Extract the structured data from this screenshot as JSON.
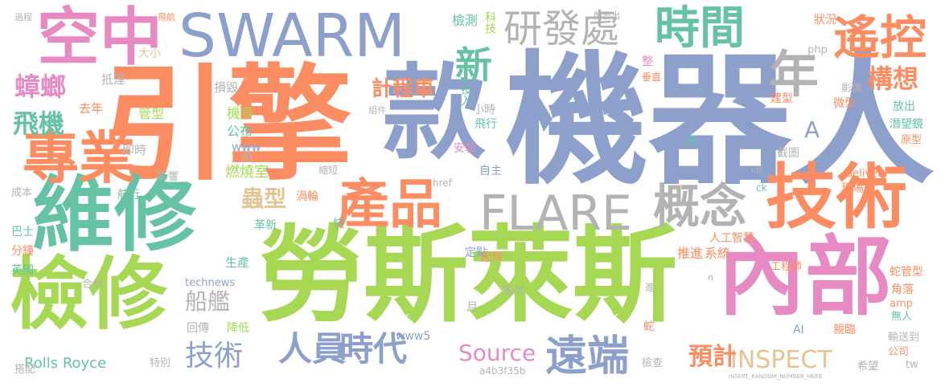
{
  "words": [
    {
      "text": "機器人",
      "color": "#8da0cb"
    },
    {
      "text": "勞斯萊斯",
      "color": "#a6d854"
    },
    {
      "text": "引擎",
      "color": "#fc8d62"
    },
    {
      "text": "維修",
      "color": "#66c2a5"
    },
    {
      "text": "檢修",
      "color": "#a6d854"
    },
    {
      "text": "內部",
      "color": "#e78ac3"
    },
    {
      "text": "技術",
      "color": "#fc8d62"
    },
    {
      "text": "款",
      "color": "#8da0cb"
    },
    {
      "text": "SWARM",
      "color": "#8da0cb"
    },
    {
      "text": "空中",
      "color": "#e78ac3"
    },
    {
      "text": "專業",
      "color": "#fc8d62"
    },
    {
      "text": "FLARE",
      "color": "#b3b3b3"
    },
    {
      "text": "產品",
      "color": "#fc8d62"
    },
    {
      "text": "概念",
      "color": "#b3b3b3"
    },
    {
      "text": "遠端",
      "color": "#8da0cb"
    },
    {
      "text": "時間",
      "color": "#66c2a5"
    },
    {
      "text": "遙控",
      "color": "#fc8d62"
    },
    {
      "text": "年",
      "color": "#b3b3b3"
    },
    {
      "text": "研發處",
      "color": "#b3b3b3"
    },
    {
      "text": "新",
      "color": "#66c2a5"
    },
    {
      "text": "人員",
      "color": "#8da0cb"
    },
    {
      "text": "時代",
      "color": "#8da0cb"
    },
    {
      "text": "技術",
      "color": "#8da0cb"
    },
    {
      "text": "INSPECT",
      "color": "#e5c494"
    },
    {
      "text": "Source",
      "color": "#e78ac3"
    },
    {
      "text": "蟑螂",
      "color": "#e78ac3"
    },
    {
      "text": "飛機",
      "color": "#66c2a5"
    },
    {
      "text": "構想",
      "color": "#fc8d62"
    },
    {
      "text": "計程車",
      "color": "#fc8d62"
    },
    {
      "text": "蟲型",
      "color": "#e5c494"
    },
    {
      "text": "船艦",
      "color": "#b3b3b3"
    },
    {
      "text": "預計",
      "color": "#fc8d62"
    },
    {
      "text": "A",
      "color": "#8da0cb"
    },
    {
      "text": "Rolls Royce",
      "color": "#66c2a5"
    },
    {
      "text": "機身",
      "color": "#a6d854"
    },
    {
      "text": "燃燒室",
      "color": "#a6d854"
    },
    {
      "text": "公布",
      "color": "#66c2a5"
    },
    {
      "text": "www",
      "color": "#8da0cb"
    },
    {
      "text": "飛",
      "color": "#b3b3b3"
    },
    {
      "text": "管型",
      "color": "#a6d854"
    },
    {
      "text": "去年",
      "color": "#fc8d62"
    },
    {
      "text": "即時",
      "color": "#b3b3b3"
    },
    {
      "text": "大小",
      "color": "#e5c494"
    },
    {
      "text": "抵達",
      "color": "#b3b3b3"
    },
    {
      "text": "損毀",
      "color": "#b3b3b3"
    },
    {
      "text": "檢測",
      "color": "#66c2a5"
    },
    {
      "text": "科技",
      "color": "#a6d854"
    },
    {
      "text": "投入",
      "color": "#66c2a5"
    },
    {
      "text": "小時",
      "color": "#b3b3b3"
    },
    {
      "text": "飛行",
      "color": "#66c2a5"
    },
    {
      "text": "安裝",
      "color": "#e78ac3"
    },
    {
      "text": "自主",
      "color": "#8da0cb"
    },
    {
      "text": "狀況",
      "color": "#fc8d62"
    },
    {
      "text": "php",
      "color": "#b3b3b3"
    },
    {
      "text": "建型",
      "color": "#fc8d62"
    },
    {
      "text": "影像",
      "color": "#b3b3b3"
    },
    {
      "text": "微型",
      "color": "#fc8d62"
    },
    {
      "text": "放出",
      "color": "#66c2a5"
    },
    {
      "text": "潛望鏡",
      "color": "#66c2a5"
    },
    {
      "text": "原型",
      "color": "#fc8d62"
    },
    {
      "text": "截圖",
      "color": "#b3b3b3"
    },
    {
      "text": "delivery",
      "color": "#fc8d62"
    },
    {
      "text": "現場",
      "color": "#fc8d62"
    },
    {
      "text": "cb",
      "color": "#b3b3b3"
    },
    {
      "text": "天",
      "color": "#66c2a5"
    },
    {
      "text": "人工智慧",
      "color": "#fc8d62"
    },
    {
      "text": "推進",
      "color": "#fc8d62"
    },
    {
      "text": "系統",
      "color": "#fc8d62"
    },
    {
      "text": "工程師",
      "color": "#fc8d62"
    },
    {
      "text": "蛇管型",
      "color": "#fc8d62"
    },
    {
      "text": "角落",
      "color": "#fc8d62"
    },
    {
      "text": "amp",
      "color": "#fc8d62"
    },
    {
      "text": "AI",
      "color": "#8da0cb"
    },
    {
      "text": "無人",
      "color": "#66c2a5"
    },
    {
      "text": "親臨",
      "color": "#fc8d62"
    },
    {
      "text": "輸送到",
      "color": "#b3b3b3"
    },
    {
      "text": "公司",
      "color": "#fc8d62"
    },
    {
      "text": "希望",
      "color": "#b3b3b3"
    },
    {
      "text": "tw",
      "color": "#b3b3b3"
    },
    {
      "text": "檢查",
      "color": "#b3b3b3"
    },
    {
      "text": "technews",
      "color": "#8da0cb"
    },
    {
      "text": "生產",
      "color": "#66c2a5"
    },
    {
      "text": "合作",
      "color": "#b3b3b3"
    },
    {
      "text": "回傳",
      "color": "#b3b3b3"
    },
    {
      "text": "降低",
      "color": "#a6d854"
    },
    {
      "text": "特別",
      "color": "#b3b3b3"
    },
    {
      "text": "搭配",
      "color": "#b3b3b3"
    },
    {
      "text": "英國",
      "color": "#66c2a5"
    },
    {
      "text": "分鐘",
      "color": "#fc8d62"
    },
    {
      "text": "巴士",
      "color": "#66c2a5"
    },
    {
      "text": "成本",
      "color": "#b3b3b3"
    },
    {
      "text": "影響",
      "color": "#b3b3b3"
    },
    {
      "text": "航行",
      "color": "#66c2a5"
    },
    {
      "text": "渦輪",
      "color": "#fc8d62"
    },
    {
      "text": "革新",
      "color": "#66c2a5"
    },
    {
      "text": "快",
      "color": "#66c2a5"
    },
    {
      "text": "定點",
      "color": "#8da0cb"
    },
    {
      "text": "起降",
      "color": "#fc8d62"
    },
    {
      "text": "影片",
      "color": "#b3b3b3"
    },
    {
      "text": "月",
      "color": "#b3b3b3"
    },
    {
      "text": "www5",
      "color": "#8da0cb"
    },
    {
      "text": "蛇",
      "color": "#fc8d62"
    },
    {
      "text": "縮短",
      "color": "#b3b3b3"
    },
    {
      "text": "href",
      "color": "#b3b3b3"
    },
    {
      "text": "ck",
      "color": "#66c2a5"
    },
    {
      "text": "a4b3f35b",
      "color": "#b3b3b3"
    },
    {
      "text": "整",
      "color": "#e78ac3"
    },
    {
      "text": "垂直",
      "color": "#fc8d62"
    },
    {
      "text": "開發出",
      "color": "#b3b3b3"
    },
    {
      "text": "組件",
      "color": "#b3b3b3"
    },
    {
      "text": "過程",
      "color": "#b3b3b3"
    },
    {
      "text": "飛航",
      "color": "#fc8d62"
    },
    {
      "text": "進",
      "color": "#b3b3b3"
    },
    {
      "text": "n",
      "color": "#b3b3b3"
    },
    {
      "text": "INSERT_RANDOM_NUMBER_HERE",
      "color": "#b3b3b3"
    }
  ]
}
